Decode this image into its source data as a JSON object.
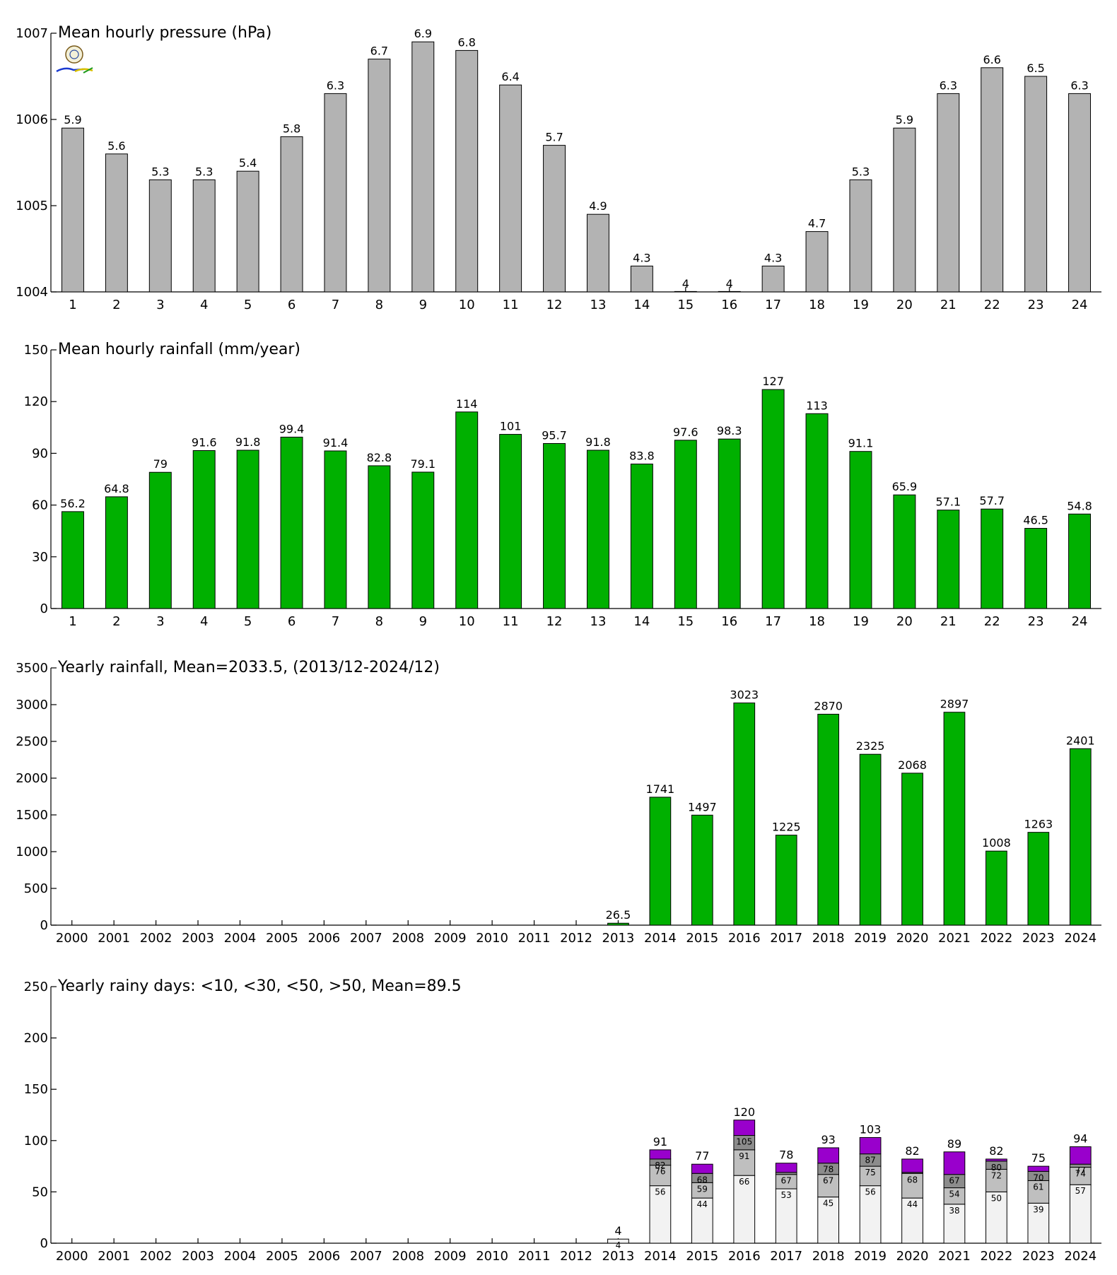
{
  "chart_data": [
    {
      "type": "bar",
      "title": "Mean hourly pressure (hPa)",
      "xlabel": "",
      "ylabel": "",
      "categories": [
        "1",
        "2",
        "3",
        "4",
        "5",
        "6",
        "7",
        "8",
        "9",
        "10",
        "11",
        "12",
        "13",
        "14",
        "15",
        "16",
        "17",
        "18",
        "19",
        "20",
        "21",
        "22",
        "23",
        "24"
      ],
      "values": [
        1005.9,
        1005.6,
        1005.3,
        1005.3,
        1005.4,
        1005.8,
        1006.3,
        1006.7,
        1006.9,
        1006.8,
        1006.4,
        1005.7,
        1004.9,
        1004.3,
        1004.0,
        1004.0,
        1004.3,
        1004.7,
        1005.3,
        1005.9,
        1006.3,
        1006.6,
        1006.5,
        1006.3
      ],
      "data_labels": [
        "5.9",
        "5.6",
        "5.3",
        "5.3",
        "5.4",
        "5.8",
        "6.3",
        "6.7",
        "6.9",
        "6.8",
        "6.4",
        "5.7",
        "4.9",
        "4.3",
        "4",
        "4",
        "4.3",
        "4.7",
        "5.3",
        "5.9",
        "6.3",
        "6.6",
        "6.5",
        "6.3"
      ],
      "ylim": [
        1004,
        1007
      ],
      "yticks": [
        1004,
        1005,
        1006,
        1007
      ],
      "ytick_labels": [
        "1004",
        "1005",
        "1006",
        "1007"
      ],
      "color": "#b3b3b3",
      "grid": false
    },
    {
      "type": "bar",
      "title": "Mean hourly rainfall (mm/year)",
      "xlabel": "",
      "ylabel": "",
      "categories": [
        "1",
        "2",
        "3",
        "4",
        "5",
        "6",
        "7",
        "8",
        "9",
        "10",
        "11",
        "12",
        "13",
        "14",
        "15",
        "16",
        "17",
        "18",
        "19",
        "20",
        "21",
        "22",
        "23",
        "24"
      ],
      "values": [
        56.2,
        64.8,
        79,
        91.6,
        91.8,
        99.4,
        91.4,
        82.8,
        79.1,
        114,
        101,
        95.7,
        91.8,
        83.8,
        97.6,
        98.3,
        127,
        113,
        91.1,
        65.9,
        57.1,
        57.7,
        46.5,
        54.8
      ],
      "data_labels": [
        "56.2",
        "64.8",
        "79",
        "91.6",
        "91.8",
        "99.4",
        "91.4",
        "82.8",
        "79.1",
        "114",
        "101",
        "95.7",
        "91.8",
        "83.8",
        "97.6",
        "98.3",
        "127",
        "113",
        "91.1",
        "65.9",
        "57.1",
        "57.7",
        "46.5",
        "54.8"
      ],
      "ylim": [
        0,
        150
      ],
      "yticks": [
        0,
        30,
        60,
        90,
        120,
        150
      ],
      "ytick_labels": [
        "0",
        "30",
        "60",
        "90",
        "120",
        "150"
      ],
      "color": "#00b000",
      "grid": false
    },
    {
      "type": "bar",
      "title": "Yearly rainfall, Mean=2033.5, (2013/12-2024/12)",
      "xlabel": "",
      "ylabel": "",
      "categories": [
        "2000",
        "2001",
        "2002",
        "2003",
        "2004",
        "2005",
        "2006",
        "2007",
        "2008",
        "2009",
        "2010",
        "2011",
        "2012",
        "2013",
        "2014",
        "2015",
        "2016",
        "2017",
        "2018",
        "2019",
        "2020",
        "2021",
        "2022",
        "2023",
        "2024"
      ],
      "values": [
        null,
        null,
        null,
        null,
        null,
        null,
        null,
        null,
        null,
        null,
        null,
        null,
        null,
        26.5,
        1741,
        1497,
        3023,
        1225,
        2870,
        2325,
        2068,
        2897,
        1008,
        1263,
        2401
      ],
      "data_labels": [
        "",
        "",
        "",
        "",
        "",
        "",
        "",
        "",
        "",
        "",
        "",
        "",
        "",
        "26.5",
        "1741",
        "1497",
        "3023",
        "1225",
        "2870",
        "2325",
        "2068",
        "2897",
        "1008",
        "1263",
        "2401"
      ],
      "ylim": [
        0,
        3500
      ],
      "yticks": [
        0,
        500,
        1000,
        1500,
        2000,
        2500,
        3000,
        3500
      ],
      "ytick_labels": [
        "0",
        "500",
        "1000",
        "1500",
        "2000",
        "2500",
        "3000",
        "3500"
      ],
      "color": "#00b000",
      "grid": false
    },
    {
      "type": "bar",
      "stacked": true,
      "title": "Yearly rainy days: <10, <30, <50, >50, Mean=89.5",
      "xlabel": "",
      "ylabel": "",
      "categories": [
        "2000",
        "2001",
        "2002",
        "2003",
        "2004",
        "2005",
        "2006",
        "2007",
        "2008",
        "2009",
        "2010",
        "2011",
        "2012",
        "2013",
        "2014",
        "2015",
        "2016",
        "2017",
        "2018",
        "2019",
        "2020",
        "2021",
        "2022",
        "2023",
        "2024"
      ],
      "cumulative_levels": [
        "<10",
        "<30",
        "<50",
        "total"
      ],
      "level_colors": [
        "#f2f2f2",
        "#bfbfbf",
        "#8c8c8c",
        "#9900cc"
      ],
      "cum_10": [
        null,
        null,
        null,
        null,
        null,
        null,
        null,
        null,
        null,
        null,
        null,
        null,
        null,
        4,
        56,
        44,
        66,
        53,
        45,
        56,
        44,
        38,
        50,
        39,
        57
      ],
      "cum_30": [
        null,
        null,
        null,
        null,
        null,
        null,
        null,
        null,
        null,
        null,
        null,
        null,
        null,
        4,
        76,
        59,
        91,
        67,
        67,
        75,
        68,
        54,
        72,
        61,
        74
      ],
      "cum_50": [
        null,
        null,
        null,
        null,
        null,
        null,
        null,
        null,
        null,
        null,
        null,
        null,
        null,
        4,
        82,
        68,
        105,
        69,
        78,
        87,
        69,
        67,
        80,
        70,
        77
      ],
      "total": [
        null,
        null,
        null,
        null,
        null,
        null,
        null,
        null,
        null,
        null,
        null,
        null,
        null,
        4,
        91,
        77,
        120,
        78,
        93,
        103,
        82,
        89,
        82,
        75,
        94
      ],
      "label_10": [
        "",
        "",
        "",
        "",
        "",
        "",
        "",
        "",
        "",
        "",
        "",
        "",
        "",
        "4",
        "56",
        "44",
        "66",
        "53",
        "45",
        "56",
        "44",
        "38",
        "50",
        "39",
        "57"
      ],
      "label_30": [
        "",
        "",
        "",
        "",
        "",
        "",
        "",
        "",
        "",
        "",
        "",
        "",
        "",
        "",
        "76",
        "59",
        "91",
        "67",
        "67",
        "75",
        "68",
        "54",
        "72",
        "61",
        "74"
      ],
      "label_50": [
        "",
        "",
        "",
        "",
        "",
        "",
        "",
        "",
        "",
        "",
        "",
        "",
        "",
        "",
        "82",
        "68",
        "105",
        "",
        "78",
        "87",
        "",
        "67",
        "80",
        "70",
        "77"
      ],
      "label_total": [
        "",
        "",
        "",
        "",
        "",
        "",
        "",
        "",
        "",
        "",
        "",
        "",
        "",
        "4",
        "91",
        "77",
        "120",
        "78",
        "93",
        "103",
        "82",
        "89",
        "82",
        "75",
        "94"
      ],
      "ylim": [
        0,
        250
      ],
      "yticks": [
        0,
        50,
        100,
        150,
        200,
        250
      ],
      "ytick_labels": [
        "0",
        "50",
        "100",
        "150",
        "200",
        "250"
      ],
      "grid": false
    }
  ]
}
